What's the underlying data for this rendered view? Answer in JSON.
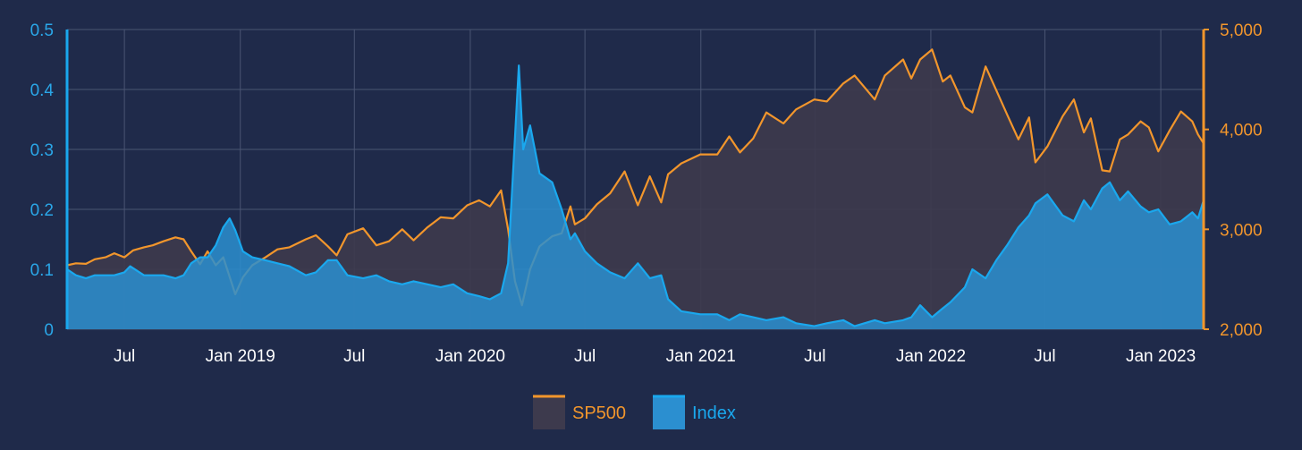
{
  "colors": {
    "background": "#1f2a4a",
    "grid": "#4a5573",
    "sp500_line": "#f2962c",
    "sp500_fill": "#3d3a4d",
    "index_line": "#1aa8ee",
    "index_fill": "#2b8fd0"
  },
  "chart_data": {
    "type": "area",
    "title": "",
    "x_range": [
      "2018-04-01",
      "2023-03-10"
    ],
    "x_ticks": [
      {
        "date": "2018-07-01",
        "label": "Jul"
      },
      {
        "date": "2019-01-01",
        "label": "Jan 2019"
      },
      {
        "date": "2019-07-01",
        "label": "Jul"
      },
      {
        "date": "2020-01-01",
        "label": "Jan 2020"
      },
      {
        "date": "2020-07-01",
        "label": "Jul"
      },
      {
        "date": "2021-01-01",
        "label": "Jan 2021"
      },
      {
        "date": "2021-07-01",
        "label": "Jul"
      },
      {
        "date": "2022-01-01",
        "label": "Jan 2022"
      },
      {
        "date": "2022-07-01",
        "label": "Jul"
      },
      {
        "date": "2023-01-01",
        "label": "Jan 2023"
      }
    ],
    "y_left": {
      "range": [
        0,
        0.5
      ],
      "ticks": [
        0,
        0.1,
        0.2,
        0.3,
        0.4,
        0.5
      ],
      "labels": [
        "0",
        "0.1",
        "0.2",
        "0.3",
        "0.4",
        "0.5"
      ]
    },
    "y_right": {
      "range": [
        2000,
        5000
      ],
      "ticks": [
        2000,
        3000,
        4000,
        5000
      ],
      "labels": [
        "2,000",
        "3,000",
        "4,000",
        "5,000"
      ]
    },
    "grid": true,
    "legend_position": "bottom-center",
    "series": [
      {
        "name": "SP500",
        "axis": "right",
        "points": [
          [
            "2018-04-01",
            2640
          ],
          [
            "2018-04-15",
            2660
          ],
          [
            "2018-05-01",
            2655
          ],
          [
            "2018-05-15",
            2700
          ],
          [
            "2018-06-01",
            2720
          ],
          [
            "2018-06-15",
            2760
          ],
          [
            "2018-07-01",
            2720
          ],
          [
            "2018-07-15",
            2790
          ],
          [
            "2018-08-01",
            2820
          ],
          [
            "2018-08-15",
            2840
          ],
          [
            "2018-09-01",
            2880
          ],
          [
            "2018-09-20",
            2920
          ],
          [
            "2018-10-03",
            2900
          ],
          [
            "2018-10-15",
            2780
          ],
          [
            "2018-10-29",
            2650
          ],
          [
            "2018-11-10",
            2780
          ],
          [
            "2018-11-23",
            2640
          ],
          [
            "2018-12-05",
            2720
          ],
          [
            "2018-12-24",
            2350
          ],
          [
            "2019-01-05",
            2520
          ],
          [
            "2019-01-20",
            2640
          ],
          [
            "2019-02-10",
            2720
          ],
          [
            "2019-03-01",
            2800
          ],
          [
            "2019-03-20",
            2820
          ],
          [
            "2019-04-15",
            2900
          ],
          [
            "2019-05-01",
            2940
          ],
          [
            "2019-05-20",
            2830
          ],
          [
            "2019-06-03",
            2740
          ],
          [
            "2019-06-20",
            2950
          ],
          [
            "2019-07-15",
            3010
          ],
          [
            "2019-08-05",
            2840
          ],
          [
            "2019-08-25",
            2880
          ],
          [
            "2019-09-15",
            3000
          ],
          [
            "2019-10-03",
            2890
          ],
          [
            "2019-10-25",
            3020
          ],
          [
            "2019-11-15",
            3120
          ],
          [
            "2019-12-05",
            3110
          ],
          [
            "2019-12-27",
            3240
          ],
          [
            "2020-01-15",
            3290
          ],
          [
            "2020-02-01",
            3230
          ],
          [
            "2020-02-19",
            3390
          ],
          [
            "2020-03-01",
            3000
          ],
          [
            "2020-03-12",
            2480
          ],
          [
            "2020-03-23",
            2240
          ],
          [
            "2020-04-05",
            2600
          ],
          [
            "2020-04-20",
            2830
          ],
          [
            "2020-05-10",
            2930
          ],
          [
            "2020-05-25",
            2960
          ],
          [
            "2020-06-08",
            3230
          ],
          [
            "2020-06-15",
            3050
          ],
          [
            "2020-07-01",
            3110
          ],
          [
            "2020-07-20",
            3250
          ],
          [
            "2020-08-10",
            3360
          ],
          [
            "2020-09-02",
            3580
          ],
          [
            "2020-09-23",
            3240
          ],
          [
            "2020-10-12",
            3530
          ],
          [
            "2020-10-30",
            3270
          ],
          [
            "2020-11-10",
            3550
          ],
          [
            "2020-12-01",
            3660
          ],
          [
            "2020-12-31",
            3750
          ],
          [
            "2021-01-27",
            3750
          ],
          [
            "2021-02-15",
            3930
          ],
          [
            "2021-03-04",
            3770
          ],
          [
            "2021-03-25",
            3910
          ],
          [
            "2021-04-15",
            4170
          ],
          [
            "2021-05-12",
            4060
          ],
          [
            "2021-06-01",
            4200
          ],
          [
            "2021-06-30",
            4300
          ],
          [
            "2021-07-20",
            4280
          ],
          [
            "2021-08-15",
            4460
          ],
          [
            "2021-09-02",
            4540
          ],
          [
            "2021-10-04",
            4300
          ],
          [
            "2021-10-20",
            4540
          ],
          [
            "2021-11-18",
            4700
          ],
          [
            "2021-12-01",
            4510
          ],
          [
            "2021-12-15",
            4700
          ],
          [
            "2022-01-03",
            4800
          ],
          [
            "2022-01-20",
            4480
          ],
          [
            "2022-02-01",
            4540
          ],
          [
            "2022-02-24",
            4220
          ],
          [
            "2022-03-08",
            4170
          ],
          [
            "2022-03-29",
            4630
          ],
          [
            "2022-04-15",
            4390
          ],
          [
            "2022-05-02",
            4150
          ],
          [
            "2022-05-20",
            3900
          ],
          [
            "2022-06-06",
            4120
          ],
          [
            "2022-06-16",
            3670
          ],
          [
            "2022-07-05",
            3830
          ],
          [
            "2022-07-29",
            4130
          ],
          [
            "2022-08-16",
            4300
          ],
          [
            "2022-09-01",
            3970
          ],
          [
            "2022-09-12",
            4110
          ],
          [
            "2022-09-30",
            3590
          ],
          [
            "2022-10-12",
            3580
          ],
          [
            "2022-10-28",
            3900
          ],
          [
            "2022-11-10",
            3950
          ],
          [
            "2022-11-30",
            4080
          ],
          [
            "2022-12-13",
            4020
          ],
          [
            "2022-12-28",
            3780
          ],
          [
            "2023-01-15",
            3990
          ],
          [
            "2023-02-02",
            4180
          ],
          [
            "2023-02-20",
            4080
          ],
          [
            "2023-03-01",
            3950
          ],
          [
            "2023-03-10",
            3860
          ]
        ]
      },
      {
        "name": "Index",
        "axis": "left",
        "points": [
          [
            "2018-04-01",
            0.1
          ],
          [
            "2018-04-15",
            0.09
          ],
          [
            "2018-05-01",
            0.085
          ],
          [
            "2018-05-15",
            0.09
          ],
          [
            "2018-06-01",
            0.09
          ],
          [
            "2018-06-15",
            0.09
          ],
          [
            "2018-07-01",
            0.095
          ],
          [
            "2018-07-10",
            0.105
          ],
          [
            "2018-08-01",
            0.09
          ],
          [
            "2018-08-15",
            0.09
          ],
          [
            "2018-09-01",
            0.09
          ],
          [
            "2018-09-20",
            0.085
          ],
          [
            "2018-10-03",
            0.09
          ],
          [
            "2018-10-15",
            0.11
          ],
          [
            "2018-10-29",
            0.12
          ],
          [
            "2018-11-10",
            0.12
          ],
          [
            "2018-11-23",
            0.14
          ],
          [
            "2018-12-05",
            0.17
          ],
          [
            "2018-12-15",
            0.185
          ],
          [
            "2018-12-24",
            0.165
          ],
          [
            "2019-01-05",
            0.13
          ],
          [
            "2019-01-20",
            0.12
          ],
          [
            "2019-02-10",
            0.115
          ],
          [
            "2019-03-01",
            0.11
          ],
          [
            "2019-03-20",
            0.105
          ],
          [
            "2019-04-15",
            0.09
          ],
          [
            "2019-05-01",
            0.095
          ],
          [
            "2019-05-20",
            0.115
          ],
          [
            "2019-06-03",
            0.115
          ],
          [
            "2019-06-20",
            0.09
          ],
          [
            "2019-07-15",
            0.085
          ],
          [
            "2019-08-05",
            0.09
          ],
          [
            "2019-08-25",
            0.08
          ],
          [
            "2019-09-15",
            0.075
          ],
          [
            "2019-10-03",
            0.08
          ],
          [
            "2019-10-25",
            0.075
          ],
          [
            "2019-11-15",
            0.07
          ],
          [
            "2019-12-05",
            0.075
          ],
          [
            "2019-12-27",
            0.06
          ],
          [
            "2020-01-15",
            0.055
          ],
          [
            "2020-02-01",
            0.05
          ],
          [
            "2020-02-19",
            0.06
          ],
          [
            "2020-03-01",
            0.11
          ],
          [
            "2020-03-12",
            0.32
          ],
          [
            "2020-03-18",
            0.44
          ],
          [
            "2020-03-25",
            0.3
          ],
          [
            "2020-04-05",
            0.34
          ],
          [
            "2020-04-20",
            0.26
          ],
          [
            "2020-05-10",
            0.245
          ],
          [
            "2020-05-25",
            0.2
          ],
          [
            "2020-06-08",
            0.15
          ],
          [
            "2020-06-15",
            0.16
          ],
          [
            "2020-07-01",
            0.13
          ],
          [
            "2020-07-20",
            0.11
          ],
          [
            "2020-08-10",
            0.095
          ],
          [
            "2020-09-02",
            0.085
          ],
          [
            "2020-09-23",
            0.11
          ],
          [
            "2020-10-12",
            0.085
          ],
          [
            "2020-10-30",
            0.09
          ],
          [
            "2020-11-10",
            0.05
          ],
          [
            "2020-12-01",
            0.03
          ],
          [
            "2020-12-31",
            0.025
          ],
          [
            "2021-01-27",
            0.025
          ],
          [
            "2021-02-15",
            0.015
          ],
          [
            "2021-03-04",
            0.025
          ],
          [
            "2021-03-25",
            0.02
          ],
          [
            "2021-04-15",
            0.015
          ],
          [
            "2021-05-12",
            0.02
          ],
          [
            "2021-06-01",
            0.01
          ],
          [
            "2021-06-30",
            0.005
          ],
          [
            "2021-07-20",
            0.01
          ],
          [
            "2021-08-15",
            0.015
          ],
          [
            "2021-09-02",
            0.005
          ],
          [
            "2021-10-04",
            0.015
          ],
          [
            "2021-10-20",
            0.01
          ],
          [
            "2021-11-18",
            0.015
          ],
          [
            "2021-12-01",
            0.02
          ],
          [
            "2021-12-15",
            0.04
          ],
          [
            "2022-01-03",
            0.02
          ],
          [
            "2022-01-20",
            0.035
          ],
          [
            "2022-02-01",
            0.045
          ],
          [
            "2022-02-24",
            0.07
          ],
          [
            "2022-03-08",
            0.1
          ],
          [
            "2022-03-29",
            0.085
          ],
          [
            "2022-04-15",
            0.115
          ],
          [
            "2022-05-02",
            0.14
          ],
          [
            "2022-05-20",
            0.17
          ],
          [
            "2022-06-06",
            0.19
          ],
          [
            "2022-06-16",
            0.21
          ],
          [
            "2022-07-05",
            0.225
          ],
          [
            "2022-07-29",
            0.19
          ],
          [
            "2022-08-16",
            0.18
          ],
          [
            "2022-09-01",
            0.215
          ],
          [
            "2022-09-12",
            0.2
          ],
          [
            "2022-09-30",
            0.235
          ],
          [
            "2022-10-12",
            0.245
          ],
          [
            "2022-10-28",
            0.215
          ],
          [
            "2022-11-10",
            0.23
          ],
          [
            "2022-11-30",
            0.205
          ],
          [
            "2022-12-13",
            0.195
          ],
          [
            "2022-12-28",
            0.2
          ],
          [
            "2023-01-15",
            0.175
          ],
          [
            "2023-02-02",
            0.18
          ],
          [
            "2023-02-20",
            0.195
          ],
          [
            "2023-03-01",
            0.185
          ],
          [
            "2023-03-10",
            0.215
          ]
        ]
      }
    ]
  }
}
